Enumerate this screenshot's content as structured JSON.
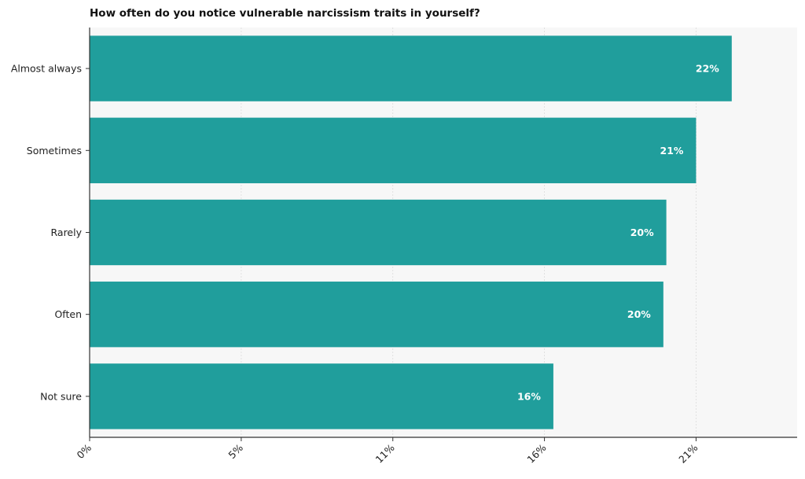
{
  "chart_data": {
    "type": "bar",
    "orientation": "horizontal",
    "title": "How often do you notice vulnerable narcissism traits in yourself?",
    "xlabel": "",
    "ylabel": "",
    "categories": [
      "Almost always",
      "Sometimes",
      "Rarely",
      "Often",
      "Not sure"
    ],
    "values": [
      21.6,
      20.4,
      19.4,
      19.3,
      15.6
    ],
    "data_labels": [
      "22%",
      "21%",
      "20%",
      "20%",
      "16%"
    ],
    "x_ticks": [
      0,
      5.1,
      10.2,
      15.3,
      20.4
    ],
    "x_tick_labels": [
      "0%",
      "5%",
      "11%",
      "16%",
      "21%"
    ],
    "xlim": [
      0,
      23.8
    ],
    "grid": "vertical",
    "legend": "none",
    "colors": {
      "bar": "#209e9c",
      "plot_background": "#f7f7f7",
      "data_label": "#ffffff"
    }
  }
}
